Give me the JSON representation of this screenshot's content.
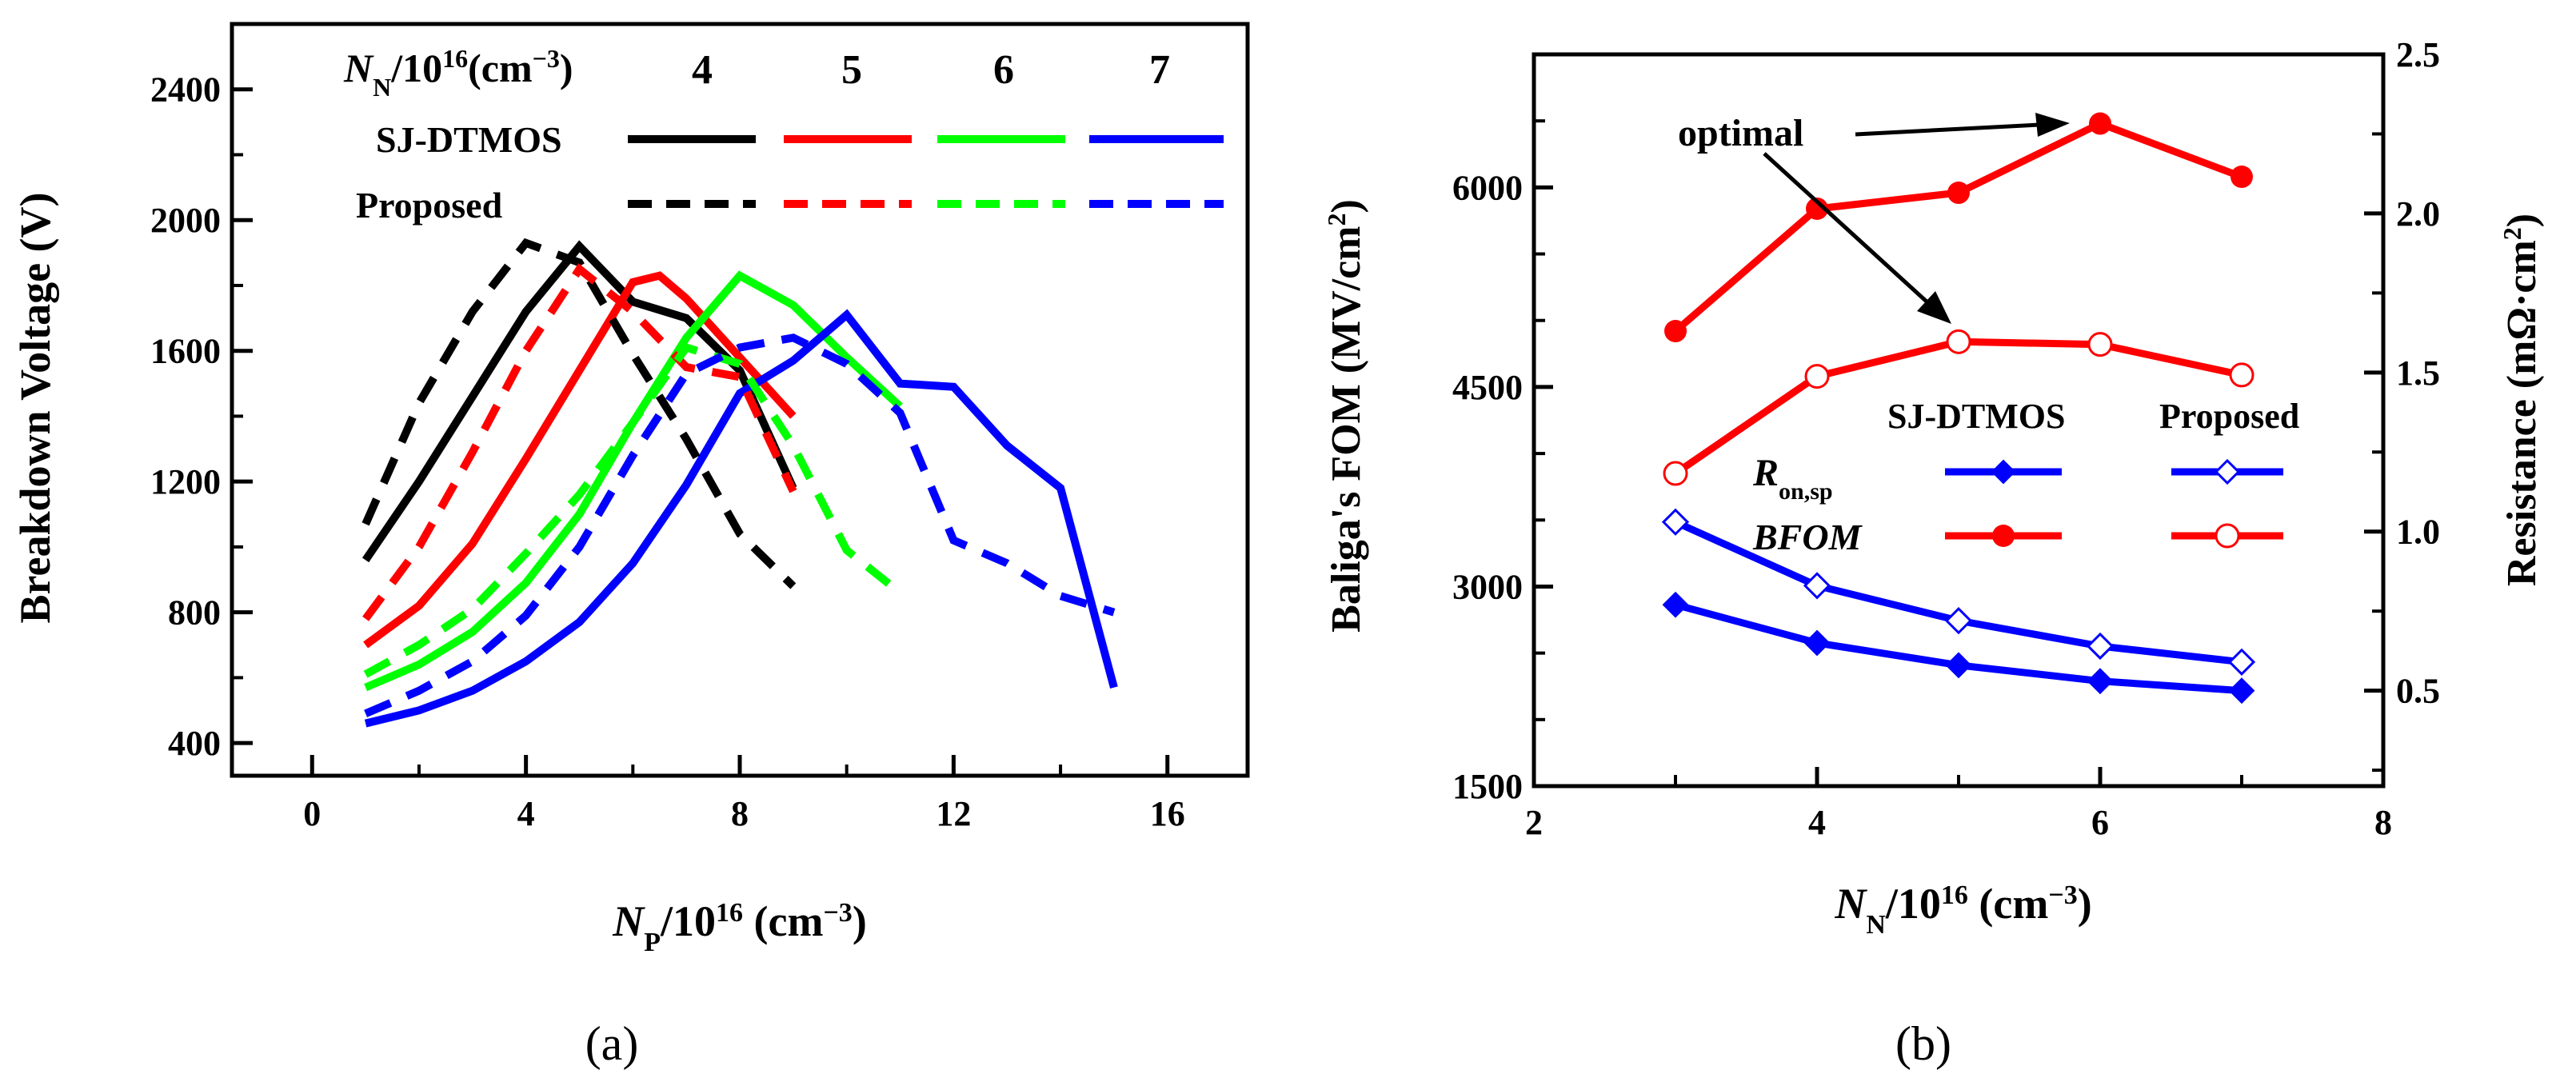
{
  "panel_labels": [
    "(a)",
    "(b)"
  ],
  "legend_a": {
    "header_sym": "N",
    "header_sub": "N",
    "header_rest": "/10",
    "header_sup": "16",
    "header_unit": "(cm",
    "header_unit_sup": "−3",
    "header_close": ")",
    "values": [
      "4",
      "5",
      "6",
      "7"
    ],
    "row1": "SJ-DTMOS",
    "row2": "Proposed"
  },
  "legend_b": {
    "col1": "SJ-DTMOS",
    "col2": "Proposed",
    "row1_sym": "R",
    "row1_sub": "on,sp",
    "row2": "BFOM"
  },
  "annotation_b": "optimal",
  "chart_data": [
    {
      "type": "line",
      "panel": "(a)",
      "xlabel_sym": "N",
      "xlabel_sub": "P",
      "xlabel_rest": "/10",
      "xlabel_sup": "16",
      "xlabel_unit": " (cm",
      "xlabel_unit_sup": "−3",
      "xlabel_close": ")",
      "ylabel": "Breakdown Voltage (V)",
      "xlim": [
        -1.5,
        17.5
      ],
      "ylim": [
        300,
        2600
      ],
      "xticks": [
        "0",
        "4",
        "8",
        "12",
        "16"
      ],
      "yticks": [
        "400",
        "800",
        "1200",
        "1600",
        "2000",
        "2400"
      ],
      "series": [
        {
          "group": "SJ-DTMOS",
          "NN": "4",
          "color": "#000000",
          "dash": "solid",
          "x": [
            1,
            2,
            3,
            4,
            5,
            6,
            7,
            8,
            9
          ],
          "y": [
            960,
            1200,
            1460,
            1720,
            1920,
            1750,
            1700,
            1540,
            1180
          ]
        },
        {
          "group": "SJ-DTMOS",
          "NN": "5",
          "color": "#ff0000",
          "dash": "solid",
          "x": [
            1,
            2,
            3,
            4,
            5,
            6,
            6.5,
            7,
            8,
            9
          ],
          "y": [
            700,
            820,
            1010,
            1270,
            1540,
            1810,
            1830,
            1760,
            1580,
            1400
          ]
        },
        {
          "group": "SJ-DTMOS",
          "NN": "6",
          "color": "#00ff00",
          "dash": "solid",
          "x": [
            1,
            2,
            3,
            4,
            5,
            6,
            7,
            8,
            9,
            10,
            11
          ],
          "y": [
            570,
            640,
            740,
            890,
            1100,
            1380,
            1640,
            1830,
            1740,
            1580,
            1430
          ]
        },
        {
          "group": "SJ-DTMOS",
          "NN": "7",
          "color": "#0000ff",
          "dash": "solid",
          "x": [
            1,
            2,
            3,
            4,
            5,
            6,
            7,
            8,
            9,
            10,
            11,
            12,
            13,
            14,
            15
          ],
          "y": [
            460,
            500,
            560,
            650,
            770,
            950,
            1190,
            1470,
            1570,
            1710,
            1500,
            1490,
            1310,
            1180,
            570
          ]
        },
        {
          "group": "Proposed",
          "NN": "4",
          "color": "#000000",
          "dash": "dashed",
          "x": [
            1,
            2,
            3,
            4,
            5,
            6,
            7,
            8,
            9
          ],
          "y": [
            1070,
            1440,
            1720,
            1930,
            1870,
            1590,
            1330,
            1040,
            880
          ]
        },
        {
          "group": "Proposed",
          "NN": "5",
          "color": "#ff0000",
          "dash": "dashed",
          "x": [
            1,
            2,
            3,
            4,
            5,
            6,
            7,
            8,
            9
          ],
          "y": [
            780,
            1000,
            1290,
            1600,
            1850,
            1720,
            1550,
            1520,
            1170
          ]
        },
        {
          "group": "Proposed",
          "NN": "6",
          "color": "#00ff00",
          "dash": "dashed",
          "x": [
            1,
            2,
            3,
            4,
            5,
            6,
            7,
            8,
            9,
            10,
            11
          ],
          "y": [
            610,
            700,
            810,
            980,
            1160,
            1380,
            1610,
            1560,
            1310,
            990,
            860
          ]
        },
        {
          "group": "Proposed",
          "NN": "7",
          "color": "#0000ff",
          "dash": "dashed",
          "x": [
            1,
            2,
            3,
            4,
            5,
            6,
            7,
            8,
            9,
            10,
            11,
            12,
            13,
            14,
            15
          ],
          "y": [
            490,
            560,
            650,
            790,
            1000,
            1280,
            1530,
            1610,
            1640,
            1560,
            1410,
            1020,
            950,
            850,
            800
          ]
        }
      ]
    },
    {
      "type": "line",
      "panel": "(b)",
      "xlabel_sym": "N",
      "xlabel_sub": "N",
      "xlabel_rest": "/10",
      "xlabel_sup": "16",
      "xlabel_unit": " (cm",
      "xlabel_unit_sup": "−3",
      "xlabel_close": ")",
      "ylabel_left": "Baliga's FOM (MV/cm",
      "ylabel_left_sup": "2",
      "ylabel_left_close": ")",
      "ylabel_right": "Resistance (mΩ·cm",
      "ylabel_right_sup": "2",
      "ylabel_right_close": ")",
      "xlim": [
        2,
        8
      ],
      "ylim_left": [
        1500,
        7000
      ],
      "ylim_right": [
        0.2,
        2.5
      ],
      "xticks": [
        "2",
        "4",
        "6",
        "8"
      ],
      "yticks_left": [
        "1500",
        "3000",
        "4500",
        "6000"
      ],
      "yticks_right": [
        "0.5",
        "1.0",
        "1.5",
        "2.0",
        "2.5"
      ],
      "series": [
        {
          "name": "BFOM SJ-DTMOS",
          "axis": "left",
          "color": "#ff0000",
          "marker": "filled-circle",
          "x": [
            3,
            4,
            5,
            6,
            7
          ],
          "y": [
            4920,
            5840,
            5960,
            6480,
            6080
          ]
        },
        {
          "name": "BFOM Proposed",
          "axis": "left",
          "color": "#ff0000",
          "marker": "open-circle",
          "x": [
            3,
            4,
            5,
            6,
            7
          ],
          "y": [
            3850,
            4580,
            4840,
            4820,
            4590
          ]
        },
        {
          "name": "Ron,sp SJ-DTMOS",
          "axis": "right",
          "color": "#0000ff",
          "marker": "filled-diamond",
          "x": [
            3,
            4,
            5,
            6,
            7
          ],
          "y": [
            0.77,
            0.65,
            0.58,
            0.53,
            0.5
          ]
        },
        {
          "name": "Ron,sp Proposed",
          "axis": "right",
          "color": "#0000ff",
          "marker": "open-diamond",
          "x": [
            3,
            4,
            5,
            6,
            7
          ],
          "y": [
            1.03,
            0.83,
            0.72,
            0.64,
            0.59
          ]
        }
      ]
    }
  ]
}
